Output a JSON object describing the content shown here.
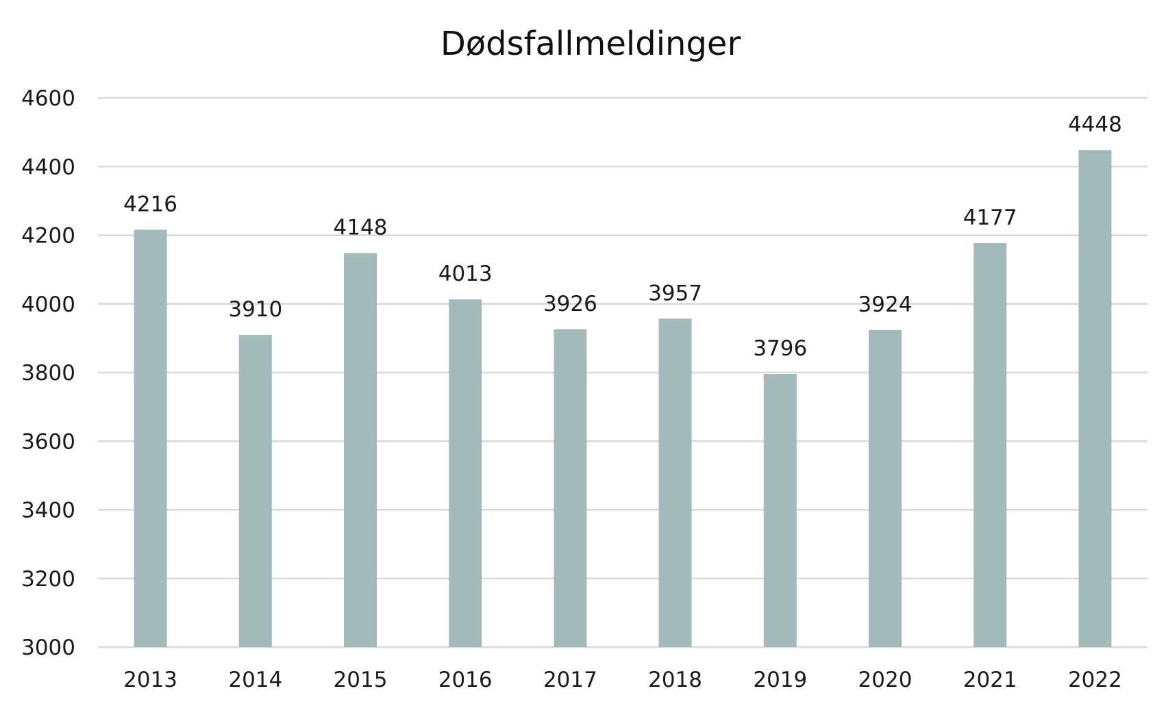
{
  "chart_data": {
    "type": "bar",
    "title": "Dødsfallmeldinger",
    "xlabel": "",
    "ylabel": "",
    "categories": [
      "2013",
      "2014",
      "2015",
      "2016",
      "2017",
      "2018",
      "2019",
      "2020",
      "2021",
      "2022"
    ],
    "values": [
      4216,
      3910,
      4148,
      4013,
      3926,
      3957,
      3796,
      3924,
      4177,
      4448
    ],
    "data_labels": [
      "4216",
      "3910",
      "4148",
      "4013",
      "3926",
      "3957",
      "3796",
      "3924",
      "4177",
      "4448"
    ],
    "ylim": [
      3000,
      4600
    ],
    "yticks": [
      3000,
      3200,
      3400,
      3600,
      3800,
      4000,
      4200,
      4400,
      4600
    ],
    "ytick_labels": [
      "3000",
      "3200",
      "3400",
      "3600",
      "3800",
      "4000",
      "4200",
      "4400",
      "4600"
    ],
    "grid": true,
    "legend": "none",
    "bar_color": "#a2baba",
    "grid_color": "#d9d9d9"
  }
}
